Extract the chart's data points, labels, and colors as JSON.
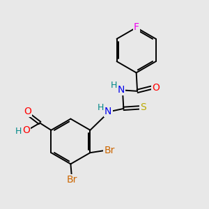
{
  "background_color": "#e8e8e8",
  "bond_color": "#000000",
  "atom_colors": {
    "F": "#ee00ee",
    "O": "#ff0000",
    "N": "#0000ee",
    "S": "#bbaa00",
    "Br": "#cc6600",
    "H": "#008888",
    "C": "#000000"
  },
  "figsize": [
    3.0,
    3.0
  ],
  "dpi": 100
}
